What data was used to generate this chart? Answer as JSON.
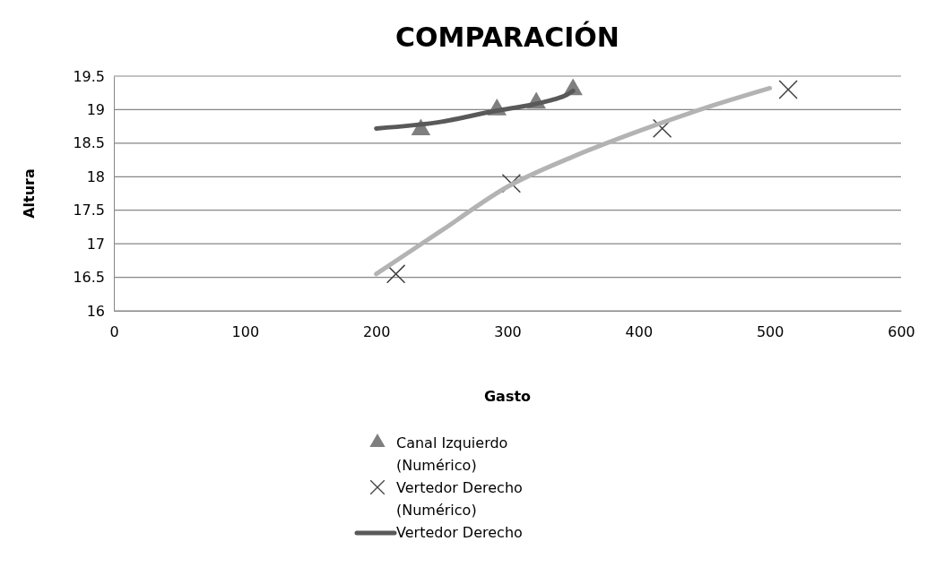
{
  "chart_data": {
    "type": "scatter",
    "title": "COMPARACIÓN",
    "xlabel": "Gasto",
    "ylabel": "Altura",
    "xlim": [
      0,
      600
    ],
    "xticks": [
      0,
      100,
      200,
      300,
      400,
      500,
      600
    ],
    "ylim": [
      16,
      19.5
    ],
    "yticks": [
      16,
      16.5,
      17,
      17.5,
      18,
      18.5,
      19,
      19.5
    ],
    "grid": "y",
    "legend": "bottom",
    "series": [
      {
        "name": "Canal Izquierdo (Numérico)",
        "marker": "triangle",
        "color": "#7f7f7f",
        "x": [
          234,
          292,
          322,
          350
        ],
        "values": [
          18.7,
          19.0,
          19.1,
          19.3
        ]
      },
      {
        "name": "Vertedor Derecho (Numérico)",
        "marker": "cross",
        "color": "#404040",
        "x": [
          215,
          303,
          418,
          514
        ],
        "values": [
          16.55,
          17.9,
          18.72,
          19.3
        ]
      },
      {
        "name": "Vertedor Derecho",
        "type": "line",
        "marker": "none",
        "color": "#595959",
        "x": [
          200,
          250,
          290,
          320,
          335,
          345,
          350
        ],
        "values": [
          18.72,
          18.82,
          18.98,
          19.08,
          19.15,
          19.22,
          19.28
        ]
      },
      {
        "type": "line",
        "marker": "none",
        "color": "#b3b3b3",
        "x": [
          200,
          250,
          300,
          350,
          400,
          450,
          500
        ],
        "values": [
          16.55,
          17.2,
          17.85,
          18.3,
          18.68,
          19.02,
          19.32
        ]
      }
    ]
  }
}
